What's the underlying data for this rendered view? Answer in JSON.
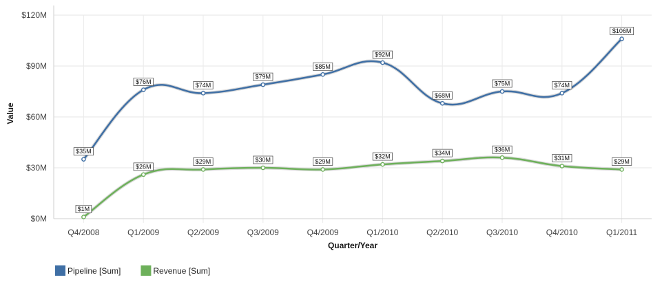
{
  "chart_data": {
    "type": "line",
    "title": "",
    "xlabel": "Quarter/Year",
    "ylabel": "Value",
    "categories": [
      "Q4/2008",
      "Q1/2009",
      "Q2/2009",
      "Q3/2009",
      "Q4/2009",
      "Q1/2010",
      "Q2/2010",
      "Q3/2010",
      "Q4/2010",
      "Q1/2011"
    ],
    "ylim": [
      0,
      120
    ],
    "yticks": [
      0,
      30,
      60,
      90,
      120
    ],
    "ytick_labels": [
      "$0M",
      "$30M",
      "$60M",
      "$90M",
      "$120M"
    ],
    "grid": true,
    "legend_position": "bottom-left",
    "series": [
      {
        "name": "Pipeline [Sum]",
        "color": "#3f6fa5",
        "values": [
          35,
          76,
          74,
          79,
          85,
          92,
          68,
          75,
          74,
          106
        ],
        "labels": [
          "$35M",
          "$76M",
          "$74M",
          "$79M",
          "$85M",
          "$92M",
          "$68M",
          "$75M",
          "$74M",
          "$106M"
        ]
      },
      {
        "name": "Revenue [Sum]",
        "color": "#6db05a",
        "values": [
          1,
          26,
          29,
          30,
          29,
          32,
          34,
          36,
          31,
          29
        ],
        "labels": [
          "$1M",
          "$26M",
          "$29M",
          "$30M",
          "$29M",
          "$32M",
          "$34M",
          "$36M",
          "$31M",
          "$29M"
        ]
      }
    ]
  }
}
